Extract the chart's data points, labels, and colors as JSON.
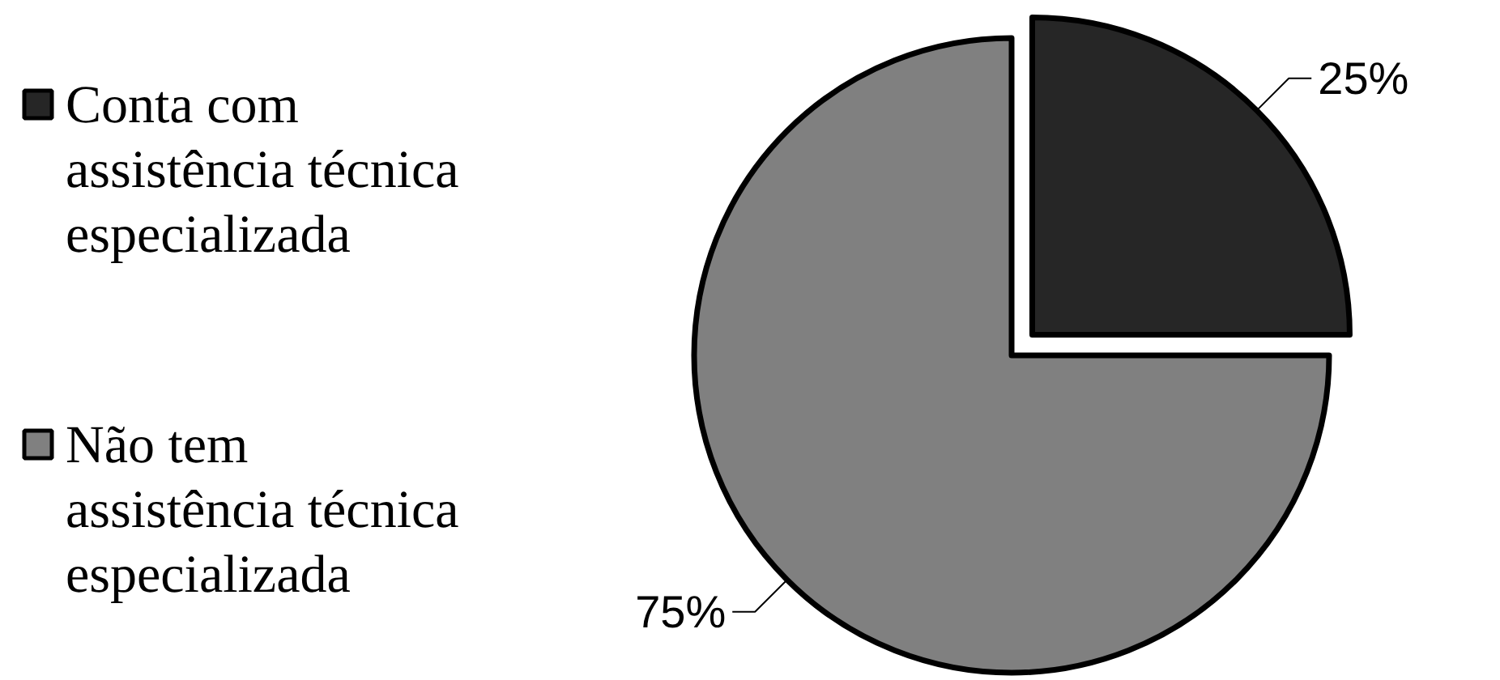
{
  "chart_data": {
    "type": "pie",
    "categories": [
      "Conta com assistência técnica especializada",
      "Não tem assistência técnica especializada"
    ],
    "values": [
      25,
      75
    ],
    "colors": [
      "#262626",
      "#808080"
    ],
    "value_labels": [
      "25%",
      "75%"
    ],
    "legend": "left"
  }
}
